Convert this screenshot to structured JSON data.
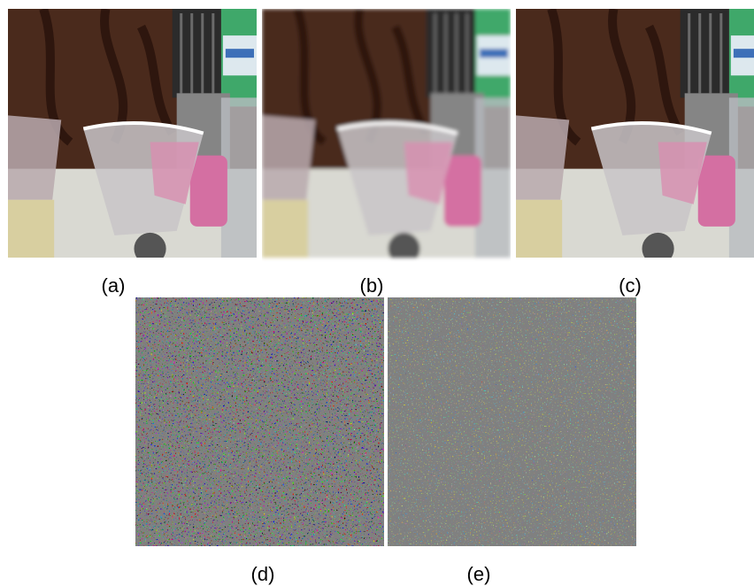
{
  "figure": {
    "labels": [
      "(a)",
      "(b)",
      "(c)",
      "(d)",
      "(e)"
    ]
  }
}
